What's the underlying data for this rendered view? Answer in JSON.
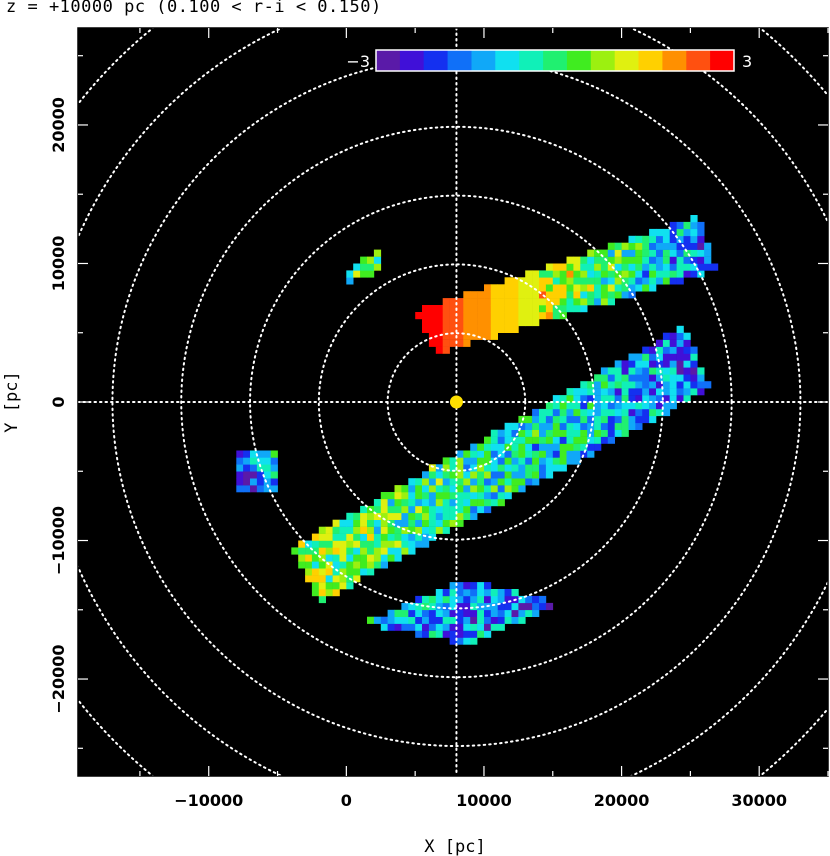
{
  "chart_data": {
    "type": "heatmap",
    "title": "z = +10000 pc (0.100 < r-i < 0.150)",
    "xlabel": "X [pc]",
    "ylabel": "Y [pc]",
    "xlim": [
      -19500,
      35000
    ],
    "ylim": [
      -27000,
      27000
    ],
    "xticks": [
      -10000,
      0,
      10000,
      20000,
      30000
    ],
    "xtick_labels": [
      "−10000",
      "0",
      "10000",
      "20000",
      "30000"
    ],
    "yticks": [
      -20000,
      -10000,
      0,
      10000,
      20000
    ],
    "ytick_labels": [
      "−20000",
      "−10000",
      "0",
      "10000",
      "20000"
    ],
    "background": "#000000",
    "grid": {
      "center": [
        8000,
        0
      ],
      "ring_radii": [
        5000,
        10000,
        15000,
        20000,
        25000,
        30000,
        35000
      ],
      "style": "dotted",
      "color": "#ffffff",
      "crosshair": true
    },
    "sun_marker": {
      "x": 8000,
      "y": 0,
      "color": "#ffe000"
    },
    "colorbar": {
      "min": -3,
      "max": 3,
      "min_label": "−3",
      "max_label": "3",
      "placement": "top-center",
      "colors": [
        "#5a1aa8",
        "#4010d8",
        "#1430f0",
        "#1070f8",
        "#10a8f8",
        "#10e0f0",
        "#10f0b8",
        "#20f070",
        "#40ec20",
        "#9cf010",
        "#e0f010",
        "#ffd000",
        "#ff9000",
        "#ff5010",
        "#ff0000"
      ]
    },
    "cell_size_pc": 500,
    "regions": [
      {
        "name": "upper-arm",
        "corners": [
          [
            5000,
            6500
          ],
          [
            6500,
            3500
          ],
          [
            27000,
            9500
          ],
          [
            25500,
            13500
          ]
        ],
        "value_start": 3.0,
        "value_end": -1.7
      },
      {
        "name": "main-arm",
        "corners": [
          [
            -4000,
            -10500
          ],
          [
            -2000,
            -14500
          ],
          [
            26500,
            1000
          ],
          [
            24500,
            5500
          ]
        ],
        "value_start": 0.6,
        "value_end": -1.5
      },
      {
        "name": "lower-patch",
        "corners": [
          [
            1000,
            -16000
          ],
          [
            9000,
            -17500
          ],
          [
            15500,
            -14500
          ],
          [
            8500,
            -12800
          ]
        ],
        "value_start": -0.9,
        "value_end": -1.8
      },
      {
        "name": "patch-upper-left",
        "corners": [
          [
            0,
            8500
          ],
          [
            0,
            9500
          ],
          [
            2500,
            11000
          ],
          [
            2500,
            9500
          ]
        ],
        "value_start": -0.2,
        "value_end": 0.4
      },
      {
        "name": "patch-left",
        "corners": [
          [
            -8000,
            -3500
          ],
          [
            -8000,
            -6500
          ],
          [
            -5000,
            -6500
          ],
          [
            -5000,
            -3500
          ]
        ],
        "value_start": -2.2,
        "value_end": -0.8
      }
    ]
  }
}
